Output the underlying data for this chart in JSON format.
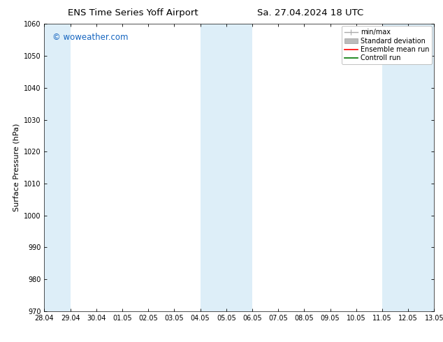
{
  "title_left": "ENS Time Series Yoff Airport",
  "title_right": "Sa. 27.04.2024 18 UTC",
  "ylabel": "Surface Pressure (hPa)",
  "ylim": [
    970,
    1060
  ],
  "yticks": [
    970,
    980,
    990,
    1000,
    1010,
    1020,
    1030,
    1040,
    1050,
    1060
  ],
  "x_labels": [
    "28.04",
    "29.04",
    "30.04",
    "01.05",
    "02.05",
    "03.05",
    "04.05",
    "05.05",
    "06.05",
    "07.05",
    "08.05",
    "09.05",
    "10.05",
    "11.05",
    "12.05",
    "13.05"
  ],
  "x_values": [
    0,
    1,
    2,
    3,
    4,
    5,
    6,
    7,
    8,
    9,
    10,
    11,
    12,
    13,
    14,
    15
  ],
  "shaded_bands": [
    {
      "xmin": 0,
      "xmax": 1
    },
    {
      "xmin": 6,
      "xmax": 8
    },
    {
      "xmin": 13,
      "xmax": 15
    }
  ],
  "watermark": "© woweather.com",
  "watermark_color": "#1565C0",
  "bg_color": "#ffffff",
  "plot_bg_color": "#ffffff",
  "band_color": "#ddeef8",
  "legend_items": [
    {
      "label": "min/max",
      "color": "#aaaaaa",
      "lw": 1.0
    },
    {
      "label": "Standard deviation",
      "color": "#bbbbbb",
      "lw": 5
    },
    {
      "label": "Ensemble mean run",
      "color": "#ff0000",
      "lw": 1.2
    },
    {
      "label": "Controll run",
      "color": "#007700",
      "lw": 1.2
    }
  ],
  "title_fontsize": 9.5,
  "axis_fontsize": 8,
  "tick_fontsize": 7,
  "watermark_fontsize": 8.5,
  "legend_fontsize": 7
}
